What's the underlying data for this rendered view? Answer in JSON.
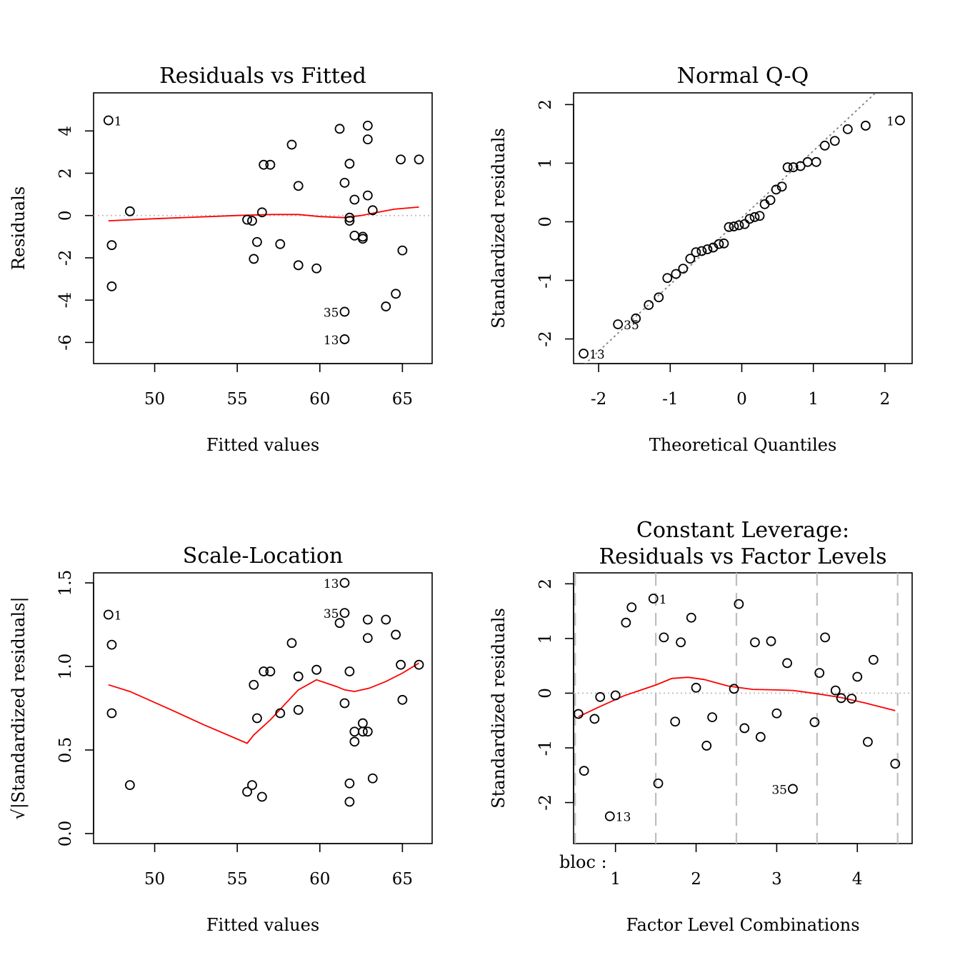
{
  "chart_data": [
    {
      "id": "p1",
      "type": "scatter",
      "title": "Residuals vs Fitted",
      "xlabel": "Fitted values",
      "ylabel": "Residuals",
      "xlim": [
        46.3,
        66.8
      ],
      "ylim": [
        -7.0,
        5.8
      ],
      "xticks": [
        {
          "v": 50,
          "t": "50"
        },
        {
          "v": 55,
          "t": "55"
        },
        {
          "v": 60,
          "t": "60"
        },
        {
          "v": 65,
          "t": "65"
        }
      ],
      "yticks": [
        {
          "v": -6,
          "t": "-6"
        },
        {
          "v": -4,
          "t": "-4"
        },
        {
          "v": -2,
          "t": "-2"
        },
        {
          "v": 0,
          "t": "0"
        },
        {
          "v": 2,
          "t": "2"
        },
        {
          "v": 4,
          "t": "4"
        }
      ],
      "hline": {
        "y": 0,
        "style": "dotted",
        "color": "#bebebe"
      },
      "points": [
        {
          "x": 47.2,
          "y": 4.5,
          "label": "1",
          "pos": "right"
        },
        {
          "x": 47.4,
          "y": -1.4
        },
        {
          "x": 47.4,
          "y": -3.35
        },
        {
          "x": 48.5,
          "y": 0.2
        },
        {
          "x": 55.6,
          "y": -0.2
        },
        {
          "x": 55.9,
          "y": -0.25
        },
        {
          "x": 56.0,
          "y": -2.05
        },
        {
          "x": 56.2,
          "y": -1.25
        },
        {
          "x": 56.5,
          "y": 0.15
        },
        {
          "x": 56.6,
          "y": 2.4
        },
        {
          "x": 57.0,
          "y": 2.4
        },
        {
          "x": 57.6,
          "y": -1.35
        },
        {
          "x": 58.3,
          "y": 3.35
        },
        {
          "x": 58.7,
          "y": 1.4
        },
        {
          "x": 58.7,
          "y": -2.35
        },
        {
          "x": 59.8,
          "y": -2.5
        },
        {
          "x": 61.2,
          "y": 4.1
        },
        {
          "x": 61.5,
          "y": 1.55
        },
        {
          "x": 61.5,
          "y": -4.55,
          "label": "35",
          "pos": "left"
        },
        {
          "x": 61.5,
          "y": -5.85,
          "label": "13",
          "pos": "left"
        },
        {
          "x": 61.8,
          "y": 2.45
        },
        {
          "x": 61.8,
          "y": -0.1
        },
        {
          "x": 61.8,
          "y": -0.25
        },
        {
          "x": 62.1,
          "y": 0.75
        },
        {
          "x": 62.1,
          "y": -0.95
        },
        {
          "x": 62.6,
          "y": -1.0
        },
        {
          "x": 62.6,
          "y": -1.1
        },
        {
          "x": 62.9,
          "y": 4.25
        },
        {
          "x": 62.9,
          "y": 3.6
        },
        {
          "x": 62.9,
          "y": 0.95
        },
        {
          "x": 63.2,
          "y": 0.25
        },
        {
          "x": 64.0,
          "y": -4.3
        },
        {
          "x": 64.6,
          "y": -3.7
        },
        {
          "x": 64.9,
          "y": 2.65
        },
        {
          "x": 65.0,
          "y": -1.65
        },
        {
          "x": 66.0,
          "y": 2.65
        }
      ],
      "smooth": [
        [
          47.2,
          -0.25
        ],
        [
          50,
          -0.15
        ],
        [
          55,
          0.0
        ],
        [
          57,
          0.05
        ],
        [
          58.7,
          0.05
        ],
        [
          60,
          -0.05
        ],
        [
          61.5,
          -0.1
        ],
        [
          62.5,
          0.0
        ],
        [
          63.5,
          0.15
        ],
        [
          64.5,
          0.3
        ],
        [
          66.0,
          0.4
        ]
      ]
    },
    {
      "id": "p2",
      "type": "scatter",
      "title": "Normal Q-Q",
      "xlabel": "Theoretical Quantiles",
      "ylabel": "Standardized residuals",
      "xlim": [
        -2.35,
        2.38
      ],
      "ylim": [
        -2.42,
        2.2
      ],
      "xticks": [
        {
          "v": -2,
          "t": "-2"
        },
        {
          "v": -1,
          "t": "-1"
        },
        {
          "v": 0,
          "t": "0"
        },
        {
          "v": 1,
          "t": "1"
        },
        {
          "v": 2,
          "t": "2"
        }
      ],
      "yticks": [
        {
          "v": -2,
          "t": "-2"
        },
        {
          "v": -1,
          "t": "-1"
        },
        {
          "v": 0,
          "t": "0"
        },
        {
          "v": 1,
          "t": "1"
        },
        {
          "v": 2,
          "t": "2"
        }
      ],
      "refline": {
        "slope": 1.14,
        "intercept": 0.07
      },
      "points": [
        {
          "x": -2.21,
          "y": -2.25,
          "label": "13",
          "pos": "right"
        },
        {
          "x": -1.73,
          "y": -1.75,
          "label": "35",
          "pos": "right"
        },
        {
          "x": -1.48,
          "y": -1.65
        },
        {
          "x": -1.3,
          "y": -1.42
        },
        {
          "x": -1.16,
          "y": -1.29
        },
        {
          "x": -1.04,
          "y": -0.96
        },
        {
          "x": -0.92,
          "y": -0.89
        },
        {
          "x": -0.82,
          "y": -0.8
        },
        {
          "x": -0.72,
          "y": -0.63
        },
        {
          "x": -0.64,
          "y": -0.52
        },
        {
          "x": -0.56,
          "y": -0.5
        },
        {
          "x": -0.48,
          "y": -0.47
        },
        {
          "x": -0.4,
          "y": -0.44
        },
        {
          "x": -0.32,
          "y": -0.38
        },
        {
          "x": -0.25,
          "y": -0.37
        },
        {
          "x": -0.18,
          "y": -0.09
        },
        {
          "x": -0.11,
          "y": -0.08
        },
        {
          "x": -0.04,
          "y": -0.06
        },
        {
          "x": 0.04,
          "y": -0.04
        },
        {
          "x": 0.11,
          "y": 0.05
        },
        {
          "x": 0.18,
          "y": 0.08
        },
        {
          "x": 0.25,
          "y": 0.1
        },
        {
          "x": 0.32,
          "y": 0.3
        },
        {
          "x": 0.4,
          "y": 0.37
        },
        {
          "x": 0.48,
          "y": 0.55
        },
        {
          "x": 0.56,
          "y": 0.6
        },
        {
          "x": 0.64,
          "y": 0.93
        },
        {
          "x": 0.72,
          "y": 0.93
        },
        {
          "x": 0.82,
          "y": 0.95
        },
        {
          "x": 0.92,
          "y": 1.02
        },
        {
          "x": 1.04,
          "y": 1.02
        },
        {
          "x": 1.16,
          "y": 1.3
        },
        {
          "x": 1.3,
          "y": 1.38
        },
        {
          "x": 1.48,
          "y": 1.58
        },
        {
          "x": 1.73,
          "y": 1.64
        },
        {
          "x": 2.21,
          "y": 1.73,
          "label": "1",
          "pos": "left"
        }
      ]
    },
    {
      "id": "p3",
      "type": "scatter",
      "title": "Scale-Location",
      "xlabel": "Fitted values",
      "ylabel": "√|Standardized residuals|",
      "xlim": [
        46.3,
        66.8
      ],
      "ylim": [
        -0.06,
        1.56
      ],
      "xticks": [
        {
          "v": 50,
          "t": "50"
        },
        {
          "v": 55,
          "t": "55"
        },
        {
          "v": 60,
          "t": "60"
        },
        {
          "v": 65,
          "t": "65"
        }
      ],
      "yticks": [
        {
          "v": 0.0,
          "t": "0.0"
        },
        {
          "v": 0.5,
          "t": "0.5"
        },
        {
          "v": 1.0,
          "t": "1.0"
        },
        {
          "v": 1.5,
          "t": "1.5"
        }
      ],
      "points": [
        {
          "x": 47.2,
          "y": 1.31,
          "label": "1",
          "pos": "right"
        },
        {
          "x": 47.4,
          "y": 1.13
        },
        {
          "x": 47.4,
          "y": 0.72
        },
        {
          "x": 48.5,
          "y": 0.29
        },
        {
          "x": 55.6,
          "y": 0.25
        },
        {
          "x": 55.9,
          "y": 0.29
        },
        {
          "x": 56.0,
          "y": 0.89
        },
        {
          "x": 56.2,
          "y": 0.69
        },
        {
          "x": 56.5,
          "y": 0.22
        },
        {
          "x": 56.6,
          "y": 0.97
        },
        {
          "x": 57.0,
          "y": 0.97
        },
        {
          "x": 57.6,
          "y": 0.72
        },
        {
          "x": 58.3,
          "y": 1.14
        },
        {
          "x": 58.7,
          "y": 0.94
        },
        {
          "x": 58.7,
          "y": 0.74
        },
        {
          "x": 59.8,
          "y": 0.98
        },
        {
          "x": 61.2,
          "y": 1.26
        },
        {
          "x": 61.5,
          "y": 0.78
        },
        {
          "x": 61.5,
          "y": 1.32,
          "label": "35",
          "pos": "left"
        },
        {
          "x": 61.5,
          "y": 1.5,
          "label": "13",
          "pos": "left"
        },
        {
          "x": 61.8,
          "y": 0.97
        },
        {
          "x": 61.8,
          "y": 0.3
        },
        {
          "x": 61.8,
          "y": 0.19
        },
        {
          "x": 62.1,
          "y": 0.61
        },
        {
          "x": 62.1,
          "y": 0.55
        },
        {
          "x": 62.6,
          "y": 0.66
        },
        {
          "x": 62.6,
          "y": 0.61
        },
        {
          "x": 62.9,
          "y": 1.28
        },
        {
          "x": 62.9,
          "y": 1.17
        },
        {
          "x": 62.9,
          "y": 0.61
        },
        {
          "x": 63.2,
          "y": 0.33
        },
        {
          "x": 64.0,
          "y": 1.28
        },
        {
          "x": 64.6,
          "y": 1.19
        },
        {
          "x": 64.9,
          "y": 1.01
        },
        {
          "x": 65.0,
          "y": 0.8
        },
        {
          "x": 66.0,
          "y": 1.01
        }
      ],
      "smooth": [
        [
          47.2,
          0.89
        ],
        [
          48.5,
          0.85
        ],
        [
          51,
          0.74
        ],
        [
          53,
          0.65
        ],
        [
          55.6,
          0.54
        ],
        [
          56.0,
          0.59
        ],
        [
          57,
          0.68
        ],
        [
          58.7,
          0.86
        ],
        [
          59.8,
          0.92
        ],
        [
          61,
          0.88
        ],
        [
          61.5,
          0.86
        ],
        [
          62.1,
          0.85
        ],
        [
          63,
          0.87
        ],
        [
          64,
          0.91
        ],
        [
          65,
          0.96
        ],
        [
          66.0,
          1.02
        ]
      ]
    },
    {
      "id": "p4",
      "type": "scatter",
      "title": "Constant Leverage:",
      "title2": "Residuals vs Factor Levels",
      "xlabel": "Factor Level Combinations",
      "ylabel": "Standardized residuals",
      "factor_label": "bloc :",
      "xlim": [
        0.48,
        4.68
      ],
      "ylim": [
        -2.75,
        2.2
      ],
      "xticks": [
        {
          "v": 1,
          "t": "1"
        },
        {
          "v": 2,
          "t": "2"
        },
        {
          "v": 3,
          "t": "3"
        },
        {
          "v": 4,
          "t": "4"
        }
      ],
      "yticks": [
        {
          "v": -2,
          "t": "-2"
        },
        {
          "v": -1,
          "t": "-1"
        },
        {
          "v": 0,
          "t": "0"
        },
        {
          "v": 1,
          "t": "1"
        },
        {
          "v": 2,
          "t": "2"
        }
      ],
      "hline": {
        "y": 0,
        "style": "dotted",
        "color": "#bebebe"
      },
      "vlines": [
        0.5,
        1.5,
        2.5,
        3.5,
        4.5
      ],
      "points": [
        {
          "x": 0.54,
          "y": -0.38
        },
        {
          "x": 0.61,
          "y": -1.42
        },
        {
          "x": 0.74,
          "y": -0.47
        },
        {
          "x": 0.81,
          "y": -0.07
        },
        {
          "x": 0.93,
          "y": -2.25,
          "label": "13",
          "pos": "right"
        },
        {
          "x": 1.0,
          "y": -0.04
        },
        {
          "x": 1.13,
          "y": 1.29
        },
        {
          "x": 1.2,
          "y": 1.57
        },
        {
          "x": 1.47,
          "y": 1.73,
          "label": "1",
          "pos": "right"
        },
        {
          "x": 1.53,
          "y": -1.65
        },
        {
          "x": 1.6,
          "y": 1.02
        },
        {
          "x": 1.74,
          "y": -0.52
        },
        {
          "x": 1.81,
          "y": 0.93
        },
        {
          "x": 1.94,
          "y": 1.38
        },
        {
          "x": 2.0,
          "y": 0.1
        },
        {
          "x": 2.13,
          "y": -0.96
        },
        {
          "x": 2.2,
          "y": -0.44
        },
        {
          "x": 2.47,
          "y": 0.08
        },
        {
          "x": 2.53,
          "y": 1.63
        },
        {
          "x": 2.6,
          "y": -0.64
        },
        {
          "x": 2.73,
          "y": 0.93
        },
        {
          "x": 2.8,
          "y": -0.8
        },
        {
          "x": 2.93,
          "y": 0.95
        },
        {
          "x": 3.0,
          "y": -0.37
        },
        {
          "x": 3.13,
          "y": 0.55
        },
        {
          "x": 3.2,
          "y": -1.75,
          "label": "35",
          "pos": "left"
        },
        {
          "x": 3.47,
          "y": -0.53
        },
        {
          "x": 3.53,
          "y": 0.37
        },
        {
          "x": 3.6,
          "y": 1.02
        },
        {
          "x": 3.73,
          "y": 0.05
        },
        {
          "x": 3.8,
          "y": -0.09
        },
        {
          "x": 3.93,
          "y": -0.1
        },
        {
          "x": 4.0,
          "y": 0.3
        },
        {
          "x": 4.13,
          "y": -0.89
        },
        {
          "x": 4.2,
          "y": 0.61
        },
        {
          "x": 4.47,
          "y": -1.29
        }
      ],
      "smooth": [
        [
          0.54,
          -0.43
        ],
        [
          0.8,
          -0.25
        ],
        [
          1.1,
          -0.05
        ],
        [
          1.5,
          0.15
        ],
        [
          1.7,
          0.27
        ],
        [
          1.9,
          0.29
        ],
        [
          2.1,
          0.25
        ],
        [
          2.4,
          0.13
        ],
        [
          2.7,
          0.07
        ],
        [
          3.0,
          0.06
        ],
        [
          3.2,
          0.05
        ],
        [
          3.5,
          -0.01
        ],
        [
          3.8,
          -0.08
        ],
        [
          4.1,
          -0.18
        ],
        [
          4.47,
          -0.32
        ]
      ]
    }
  ]
}
